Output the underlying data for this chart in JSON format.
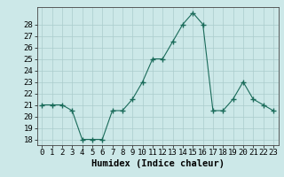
{
  "x": [
    0,
    1,
    2,
    3,
    4,
    5,
    6,
    7,
    8,
    9,
    10,
    11,
    12,
    13,
    14,
    15,
    16,
    17,
    18,
    19,
    20,
    21,
    22,
    23
  ],
  "y": [
    21.0,
    21.0,
    21.0,
    20.5,
    18.0,
    18.0,
    18.0,
    20.5,
    20.5,
    21.5,
    23.0,
    25.0,
    25.0,
    26.5,
    28.0,
    29.0,
    28.0,
    20.5,
    20.5,
    21.5,
    23.0,
    21.5,
    21.0,
    20.5
  ],
  "xlabel": "Humidex (Indice chaleur)",
  "ylim": [
    17.5,
    29.5
  ],
  "yticks": [
    18,
    19,
    20,
    21,
    22,
    23,
    24,
    25,
    26,
    27,
    28
  ],
  "xlim": [
    -0.5,
    23.5
  ],
  "xtick_labels": [
    "0",
    "1",
    "2",
    "3",
    "4",
    "5",
    "6",
    "7",
    "8",
    "9",
    "10",
    "11",
    "12",
    "13",
    "14",
    "15",
    "16",
    "17",
    "18",
    "19",
    "20",
    "21",
    "22",
    "23"
  ],
  "line_color": "#1a6b5a",
  "marker": "+",
  "marker_color": "#1a6b5a",
  "bg_color": "#cce8e8",
  "grid_color": "#aacccc",
  "label_fontsize": 7.5,
  "tick_fontsize": 6.5
}
